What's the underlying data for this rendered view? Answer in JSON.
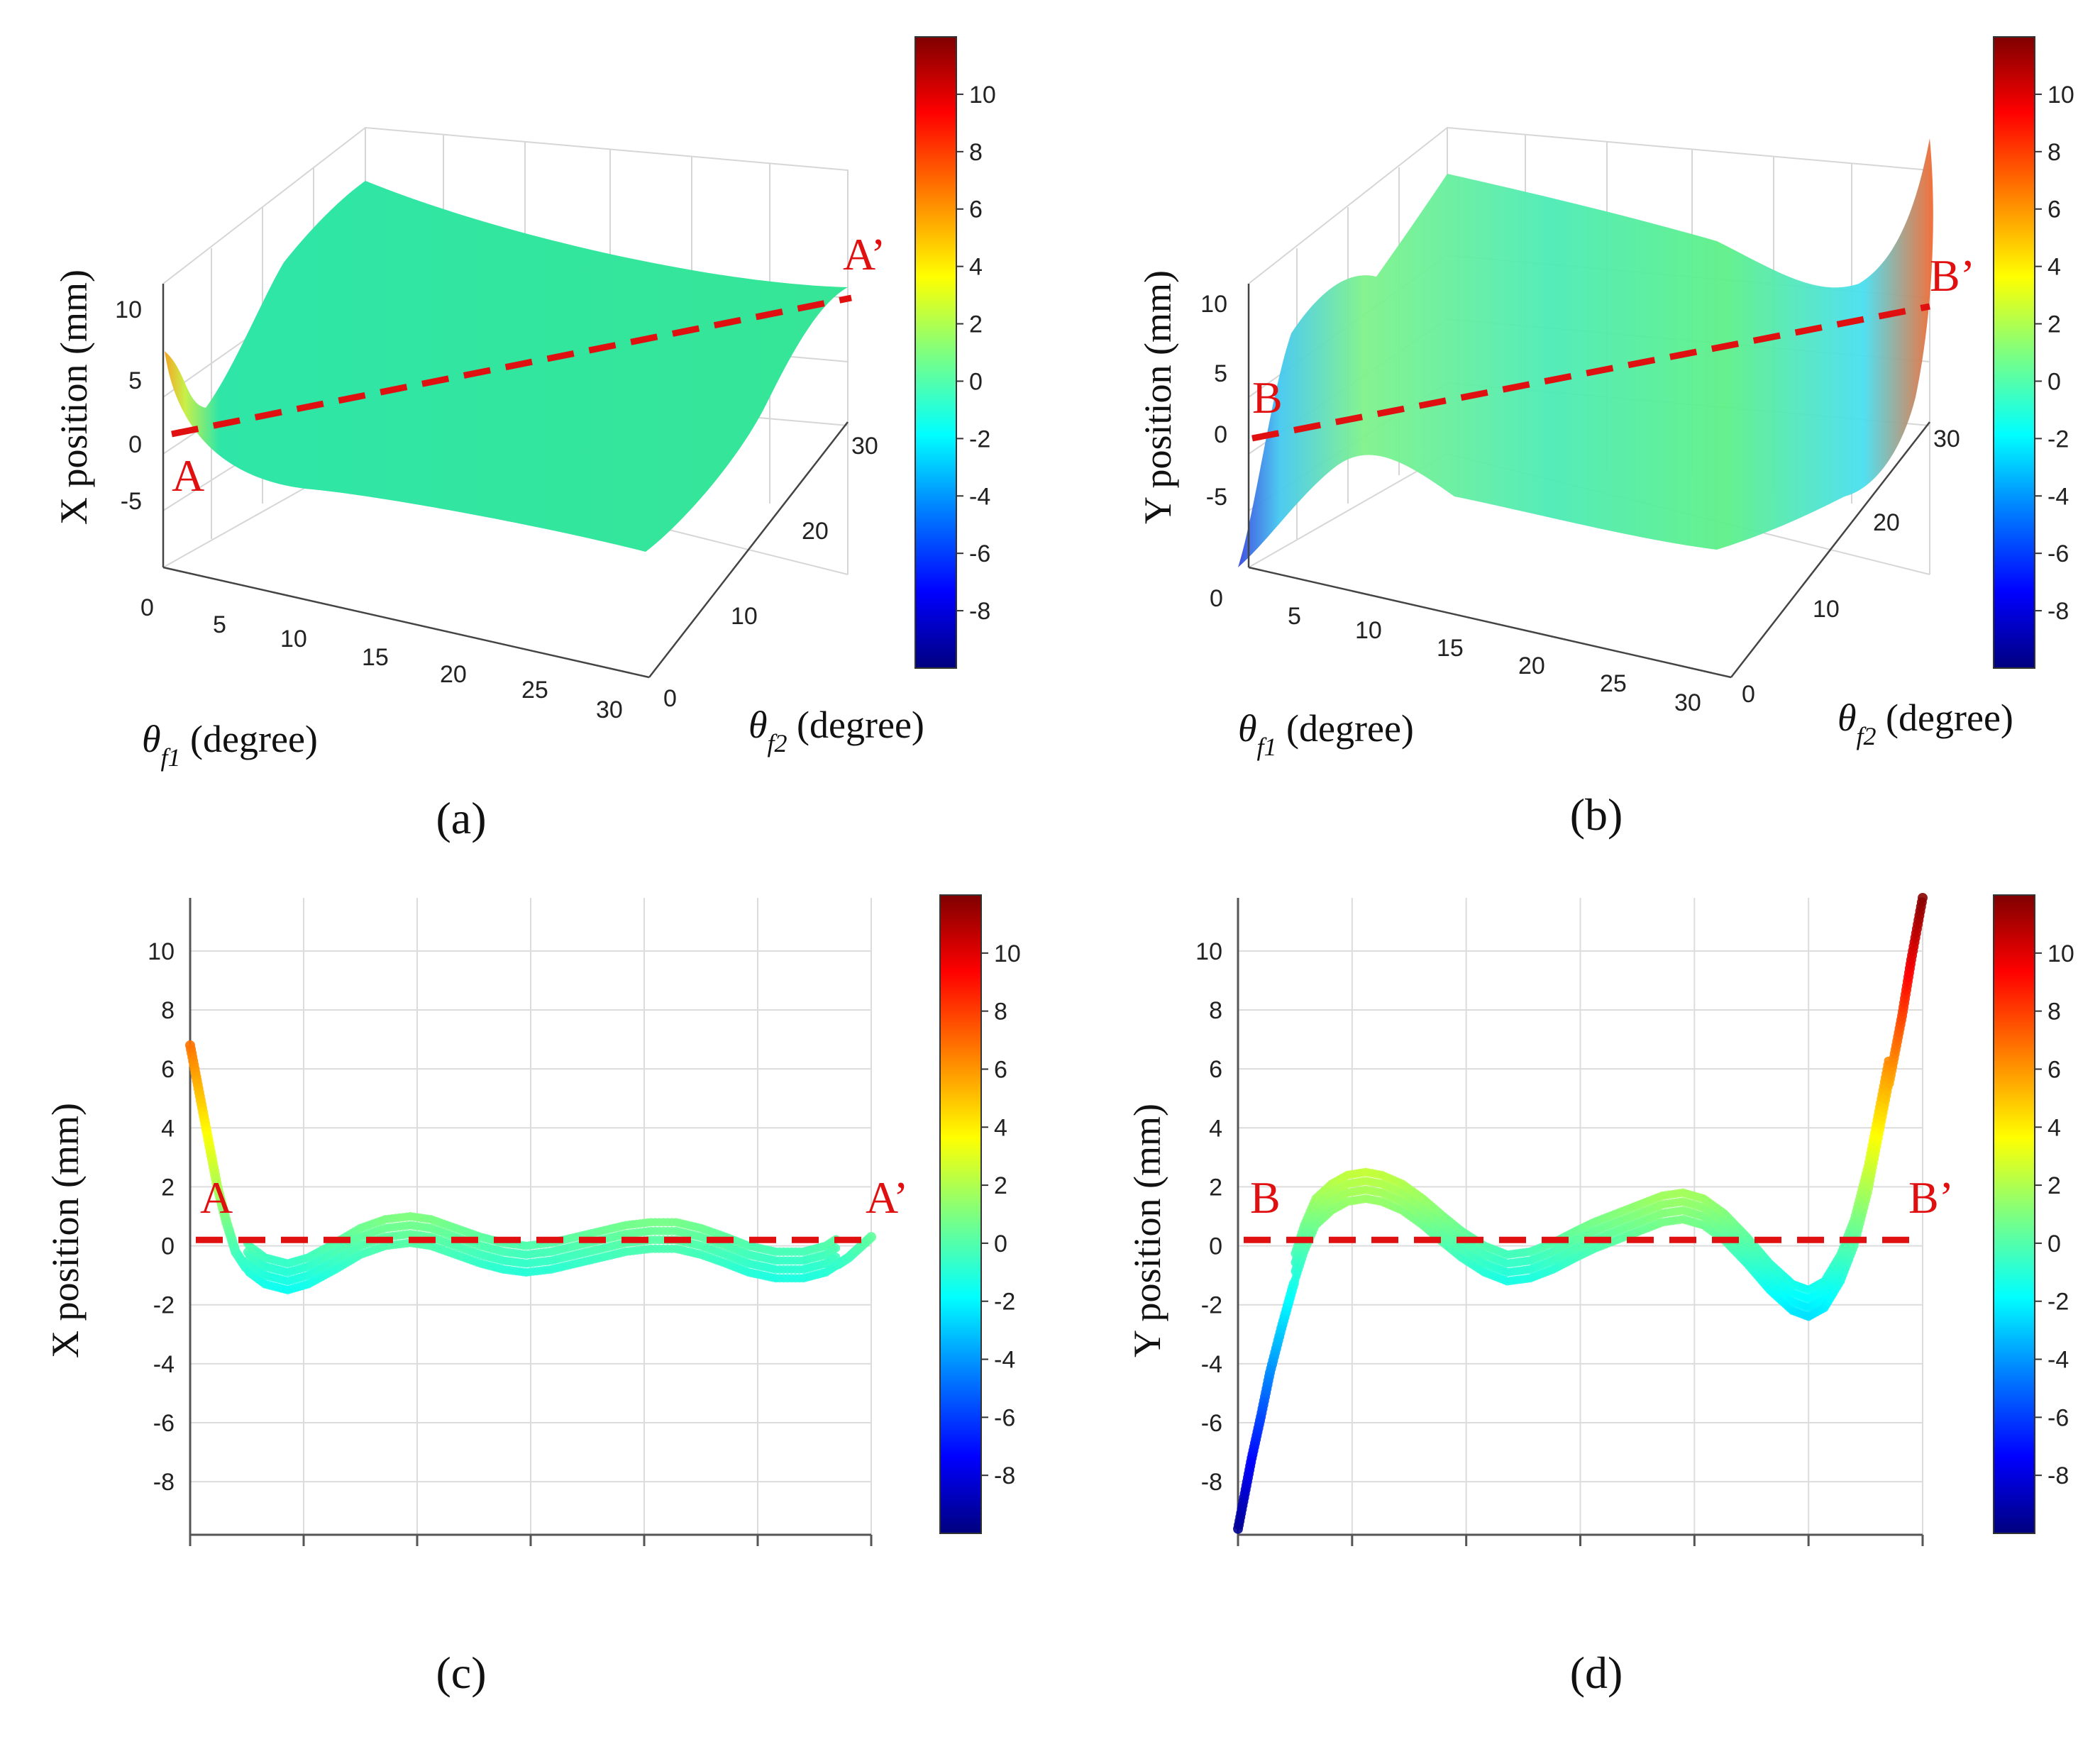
{
  "colormap": {
    "stops": [
      "#00007f",
      "#0000ff",
      "#007fff",
      "#00ffff",
      "#7fff7f",
      "#ffff00",
      "#ff7f00",
      "#ff0000",
      "#7f0000"
    ],
    "range": [
      -10,
      12
    ],
    "ticks": [
      "10",
      "8",
      "6",
      "4",
      "2",
      "0",
      "-2",
      "-4",
      "-6",
      "-8"
    ]
  },
  "chart_data": [
    {
      "type": "surface",
      "panel_label": "(a)",
      "zlabel": "X position (mm)",
      "xlabel_symbol": "θ",
      "xlabel_sub": "f1",
      "xlabel_unit": " (degree)",
      "ylabel_symbol": "θ",
      "ylabel_sub": "f2",
      "ylabel_unit": " (degree)",
      "x_ticks": [
        "0",
        "5",
        "10",
        "15",
        "20",
        "25",
        "30"
      ],
      "y_ticks": [
        "0",
        "10",
        "20",
        "30"
      ],
      "z_ticks": [
        "10",
        "5",
        "0",
        "-5"
      ],
      "marker_start": "A",
      "marker_end": "A’",
      "section_line_value": 0.2,
      "corner_values": {
        "theta1_0_theta2_0": 6.8,
        "theta1_30_theta2_30": 0.3
      }
    },
    {
      "type": "surface",
      "panel_label": "(b)",
      "zlabel": "Y position (mm)",
      "xlabel_symbol": "θ",
      "xlabel_sub": "f1",
      "xlabel_unit": " (degree)",
      "ylabel_symbol": "θ",
      "ylabel_sub": "f2",
      "ylabel_unit": " (degree)",
      "x_ticks": [
        "0",
        "5",
        "10",
        "15",
        "20",
        "25",
        "30"
      ],
      "y_ticks": [
        "0",
        "10",
        "20",
        "30"
      ],
      "z_ticks": [
        "10",
        "5",
        "0",
        "-5"
      ],
      "marker_start": "B",
      "marker_end": "B’",
      "section_line_value": 0.2,
      "corner_values": {
        "theta1_0_theta2_0": -9.6,
        "theta1_30_theta2_30": 11.8
      }
    },
    {
      "type": "scatter",
      "panel_label": "(c)",
      "ylabel": "X position (mm)",
      "ylim": [
        -9.8,
        11.8
      ],
      "y_ticks": [
        10,
        8,
        6,
        4,
        2,
        0,
        -2,
        -4,
        -6,
        -8
      ],
      "x_range": [
        0,
        30
      ],
      "marker_start": "A",
      "marker_end": "A’",
      "section_line_value": 0.2,
      "band_width": 1.0,
      "curve": [
        [
          0,
          6.8
        ],
        [
          0.3,
          5.6
        ],
        [
          0.6,
          4.4
        ],
        [
          0.9,
          3.2
        ],
        [
          1.2,
          2.0
        ],
        [
          1.6,
          0.8
        ],
        [
          2.0,
          -0.2
        ],
        [
          2.6,
          -0.9
        ],
        [
          3.3,
          -1.3
        ],
        [
          4.3,
          -1.5
        ],
        [
          5.2,
          -1.3
        ],
        [
          6.4,
          -0.8
        ],
        [
          7.5,
          -0.3
        ],
        [
          8.6,
          0.0
        ],
        [
          9.7,
          0.1
        ],
        [
          10.6,
          0.0
        ],
        [
          11.7,
          -0.3
        ],
        [
          12.8,
          -0.6
        ],
        [
          13.8,
          -0.8
        ],
        [
          14.8,
          -0.9
        ],
        [
          15.9,
          -0.8
        ],
        [
          17.0,
          -0.6
        ],
        [
          18.1,
          -0.4
        ],
        [
          19.2,
          -0.2
        ],
        [
          20.3,
          -0.1
        ],
        [
          21.4,
          -0.1
        ],
        [
          22.5,
          -0.3
        ],
        [
          23.6,
          -0.6
        ],
        [
          24.6,
          -0.9
        ],
        [
          25.8,
          -1.1
        ],
        [
          27.0,
          -1.1
        ],
        [
          28.0,
          -0.9
        ],
        [
          29.0,
          -0.4
        ],
        [
          30,
          0.3
        ]
      ]
    },
    {
      "type": "scatter",
      "panel_label": "(d)",
      "ylabel": "Y position (mm)",
      "ylim": [
        -9.8,
        11.8
      ],
      "y_ticks": [
        10,
        8,
        6,
        4,
        2,
        0,
        -2,
        -4,
        -6,
        -8
      ],
      "x_range": [
        0,
        30
      ],
      "marker_start": "B",
      "marker_end": "B’",
      "section_line_value": 0.2,
      "band_width": 1.0,
      "curve": [
        [
          0,
          -9.6
        ],
        [
          0.3,
          -8.4
        ],
        [
          0.6,
          -7.2
        ],
        [
          1.0,
          -5.8
        ],
        [
          1.4,
          -4.3
        ],
        [
          1.9,
          -2.8
        ],
        [
          2.4,
          -1.4
        ],
        [
          2.9,
          -0.2
        ],
        [
          3.4,
          0.7
        ],
        [
          4.1,
          1.2
        ],
        [
          4.8,
          1.5
        ],
        [
          5.6,
          1.6
        ],
        [
          6.3,
          1.5
        ],
        [
          7.2,
          1.2
        ],
        [
          8.1,
          0.7
        ],
        [
          9.0,
          0.1
        ],
        [
          9.8,
          -0.4
        ],
        [
          10.8,
          -0.9
        ],
        [
          11.8,
          -1.2
        ],
        [
          12.8,
          -1.1
        ],
        [
          13.8,
          -0.8
        ],
        [
          14.8,
          -0.4
        ],
        [
          15.6,
          -0.1
        ],
        [
          16.6,
          0.2
        ],
        [
          17.6,
          0.5
        ],
        [
          18.6,
          0.8
        ],
        [
          19.5,
          0.9
        ],
        [
          20.4,
          0.7
        ],
        [
          21.3,
          0.2
        ],
        [
          22.3,
          -0.6
        ],
        [
          23.3,
          -1.5
        ],
        [
          24.3,
          -2.2
        ],
        [
          25.0,
          -2.4
        ],
        [
          25.7,
          -2.1
        ],
        [
          26.4,
          -1.2
        ],
        [
          27.0,
          0.0
        ],
        [
          27.6,
          1.8
        ],
        [
          28.1,
          3.8
        ],
        [
          28.6,
          5.8
        ],
        [
          29.1,
          7.8
        ],
        [
          29.5,
          9.7
        ],
        [
          30,
          11.8
        ]
      ]
    }
  ]
}
